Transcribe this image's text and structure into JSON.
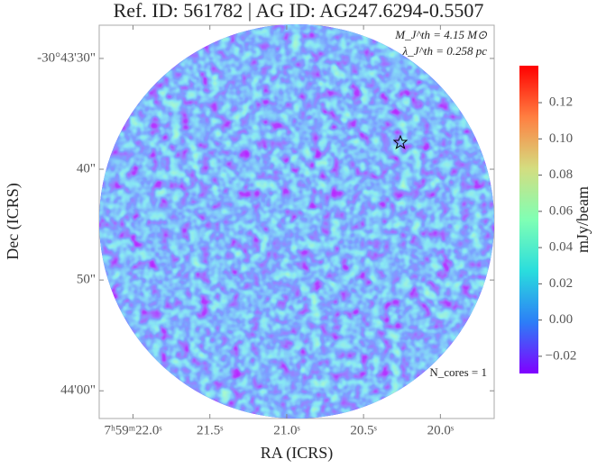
{
  "chart_data": {
    "type": "image",
    "title": "Ref. ID: 561782 | AG ID: AG247.6294-0.5507",
    "xlabel": "RA (ICRS)",
    "ylabel": "Dec (ICRS)",
    "xlim": [
      22.22,
      19.65
    ],
    "xticks": [
      {
        "value": 22.0,
        "label": "7ʰ59ᵐ22.0ˢ"
      },
      {
        "value": 21.5,
        "label": "21.5ˢ"
      },
      {
        "value": 21.0,
        "label": "21.0ˢ"
      },
      {
        "value": 20.5,
        "label": "20.5ˢ"
      },
      {
        "value": 20.0,
        "label": "20.0ˢ"
      }
    ],
    "ylim": [
      62.5,
      27.0
    ],
    "yticks": [
      {
        "value": 30,
        "label": "-30°43'30\""
      },
      {
        "value": 40,
        "label": "40\""
      },
      {
        "value": 50,
        "label": "50\""
      },
      {
        "value": 60,
        "label": "44'00\""
      }
    ],
    "colormap": "rainbow",
    "colorbar_label": "mJy/beam",
    "clim": [
      -0.0295,
      0.1404
    ],
    "cticks": [
      {
        "value": -0.02,
        "label": "−0.02"
      },
      {
        "value": 0,
        "label": "0.00"
      },
      {
        "value": 0.02,
        "label": "0.02"
      },
      {
        "value": 0.04,
        "label": "0.04"
      },
      {
        "value": 0.06,
        "label": "0.06"
      },
      {
        "value": 0.08,
        "label": "0.08"
      },
      {
        "value": 0.1,
        "label": "0.10"
      },
      {
        "value": 0.12,
        "label": "0.12"
      }
    ],
    "annotations": [
      "M_J^th = 4.15 M⊙",
      "λ_J^th = 0.258 pc",
      "N_cores = 1"
    ]
  }
}
